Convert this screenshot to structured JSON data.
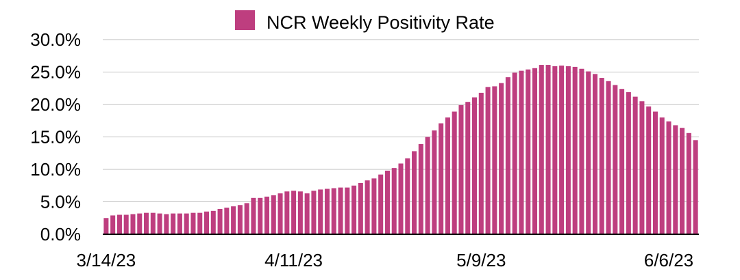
{
  "chart_data": {
    "type": "bar",
    "title": "",
    "xlabel": "",
    "ylabel": "",
    "ylim": [
      0,
      30
    ],
    "y_ticks": [
      0,
      5,
      10,
      15,
      20,
      25,
      30
    ],
    "y_tick_labels": [
      "0.0%",
      "5.0%",
      "10.0%",
      "15.0%",
      "20.0%",
      "25.0%",
      "30.0%"
    ],
    "x_tick_labels": [
      {
        "label": "3/14/23",
        "index": 0
      },
      {
        "label": "4/11/23",
        "index": 28
      },
      {
        "label": "5/9/23",
        "index": 56
      },
      {
        "label": "6/6/23",
        "index": 84
      }
    ],
    "grid": true,
    "legend": "top-center",
    "colors": {
      "bar": "#BE3E7F",
      "grid": "#bfbfbf",
      "axis": "#000000"
    },
    "series": [
      {
        "name": "NCR Weekly Positivity Rate",
        "values": [
          2.5,
          2.9,
          3.0,
          3.0,
          3.1,
          3.2,
          3.3,
          3.3,
          3.2,
          3.1,
          3.2,
          3.2,
          3.2,
          3.3,
          3.3,
          3.5,
          3.6,
          3.9,
          4.1,
          4.3,
          4.5,
          4.8,
          5.6,
          5.6,
          5.8,
          6.0,
          6.3,
          6.6,
          6.7,
          6.6,
          6.3,
          6.7,
          6.9,
          7.0,
          7.1,
          7.2,
          7.2,
          7.5,
          7.9,
          8.3,
          8.6,
          9.2,
          9.8,
          10.2,
          10.9,
          11.7,
          12.8,
          13.9,
          15.0,
          16.0,
          17.1,
          18.0,
          18.9,
          19.9,
          20.4,
          21.1,
          21.8,
          22.7,
          22.8,
          23.3,
          24.2,
          24.9,
          25.2,
          25.4,
          25.6,
          26.1,
          26.1,
          25.9,
          26.0,
          25.9,
          25.8,
          25.5,
          25.1,
          24.7,
          24.1,
          23.6,
          23.0,
          22.4,
          21.9,
          21.2,
          20.5,
          19.7,
          18.9,
          18.0,
          17.4,
          16.8,
          16.4,
          15.6,
          14.5
        ]
      }
    ]
  }
}
